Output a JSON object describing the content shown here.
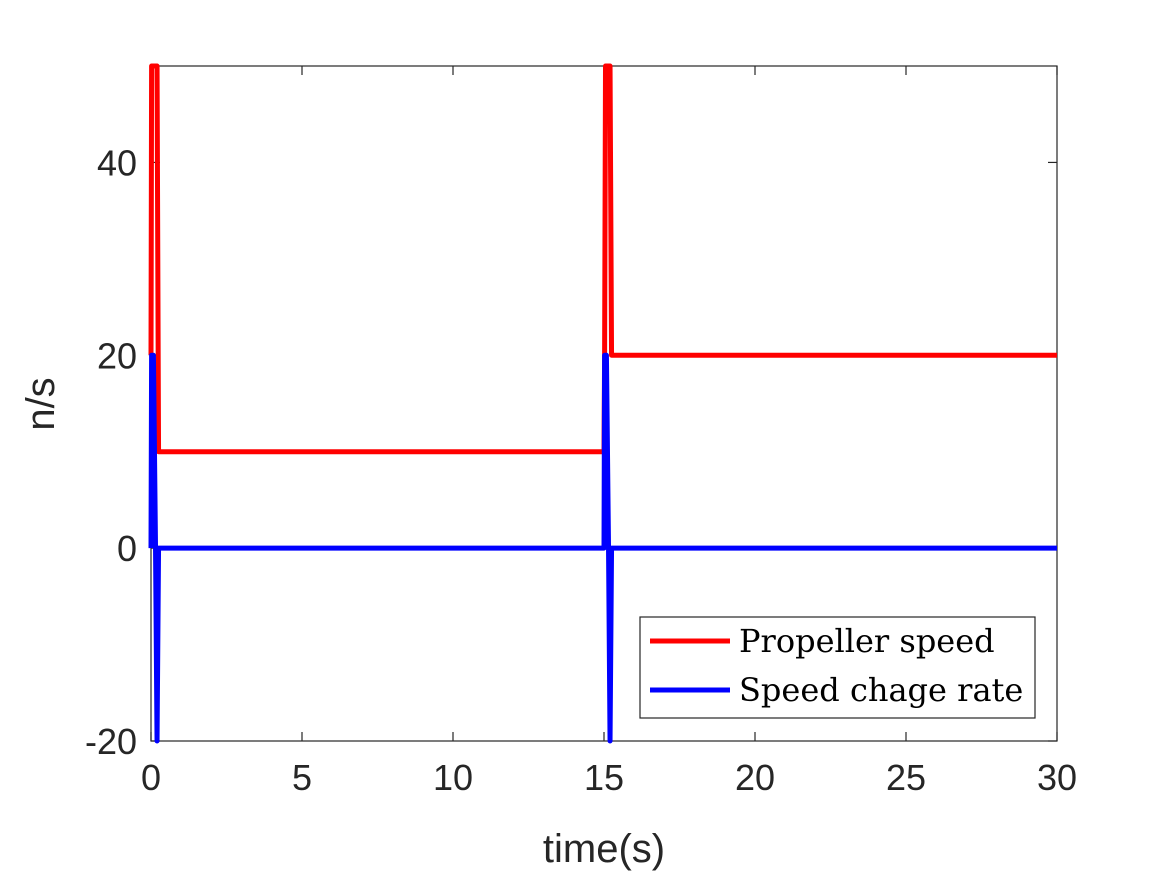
{
  "chart_data": {
    "type": "line",
    "xlabel": "time(s)",
    "ylabel": "n/s",
    "xlim": [
      0,
      30
    ],
    "ylim": [
      -20,
      50
    ],
    "xticks": [
      0,
      5,
      10,
      15,
      20,
      25,
      30
    ],
    "yticks": [
      -20,
      0,
      20,
      40
    ],
    "grid": false,
    "legend_position": "bottom-right",
    "series": [
      {
        "name": "Propeller speed",
        "color": "#ff0000",
        "x": [
          0,
          0.02,
          0.05,
          0.1,
          0.15,
          0.2,
          0.25,
          0.3,
          15.0,
          15.02,
          15.05,
          15.1,
          15.15,
          15.2,
          15.25,
          15.3,
          30
        ],
        "y": [
          20,
          50,
          50,
          50,
          50,
          50,
          10,
          10,
          10,
          20,
          50,
          50,
          50,
          50,
          20,
          20,
          20
        ]
      },
      {
        "name": "Speed chage rate",
        "color": "#0000ff",
        "x": [
          0,
          0.02,
          0.08,
          0.15,
          0.2,
          0.25,
          0.3,
          15.0,
          15.02,
          15.08,
          15.15,
          15.2,
          15.25,
          15.3,
          30
        ],
        "y": [
          0,
          20,
          20,
          0,
          -20,
          0,
          0,
          0,
          20,
          20,
          0,
          -20,
          0,
          0,
          0
        ]
      }
    ]
  }
}
